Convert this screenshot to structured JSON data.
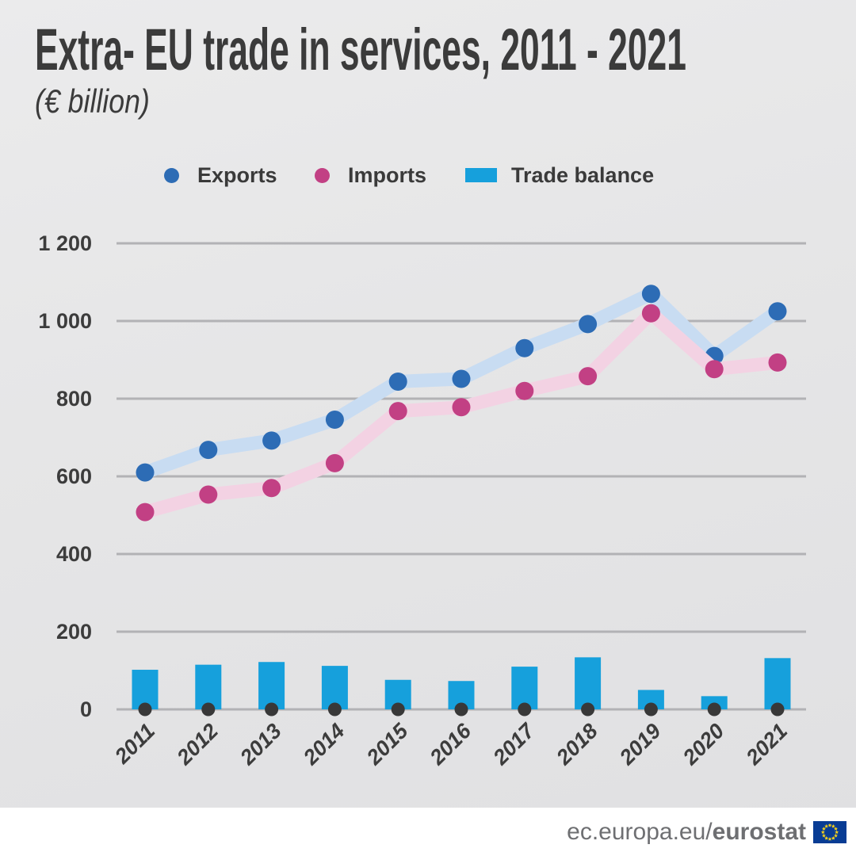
{
  "title": "Extra- EU trade in services, 2011 - 2021",
  "subtitle": "(€ billion)",
  "legend": [
    {
      "label": "Exports",
      "marker": "circle",
      "color": "#2d6cb5"
    },
    {
      "label": "Imports",
      "marker": "circle",
      "color": "#c24084"
    },
    {
      "label": "Trade balance",
      "marker": "rect",
      "color": "#16a0dc"
    }
  ],
  "footer": {
    "url_regular": "ec.europa.eu/",
    "url_bold": "eurostat",
    "flag_icon": "eu-flag-icon",
    "flag_blue": "#083c94",
    "flag_star_color": "#ffd617"
  },
  "colors": {
    "background": "#e6e6e7",
    "gridline": "#b2b2b5",
    "axis_dot": "#383838",
    "tick_text": "#3c3c3c",
    "exports_band": "#c8dcf2",
    "imports_band": "#f3d2e3"
  },
  "chart_data": {
    "type": "line+bar",
    "title": "Extra- EU trade in services, 2011 - 2021",
    "unit": "€ billion",
    "categories": [
      "2011",
      "2012",
      "2013",
      "2014",
      "2015",
      "2016",
      "2017",
      "2018",
      "2019",
      "2020",
      "2021"
    ],
    "series": [
      {
        "name": "Exports",
        "type": "line",
        "color": "#2d6cb5",
        "band_color": "#c8dcf2",
        "values": [
          610,
          668,
          692,
          746,
          844,
          851,
          930,
          992,
          1070,
          910,
          1025
        ]
      },
      {
        "name": "Imports",
        "type": "line",
        "color": "#c24084",
        "band_color": "#f3d2e3",
        "values": [
          508,
          553,
          570,
          634,
          768,
          778,
          820,
          858,
          1020,
          876,
          893
        ]
      },
      {
        "name": "Trade balance",
        "type": "bar",
        "color": "#16a0dc",
        "values": [
          102,
          115,
          122,
          112,
          76,
          73,
          110,
          134,
          50,
          34,
          132
        ]
      }
    ],
    "yticks": [
      0,
      200,
      400,
      600,
      800,
      1000,
      1200
    ],
    "ytick_labels": [
      "0",
      "200",
      "400",
      "600",
      "800",
      "1 000",
      "1 200"
    ],
    "ylim": [
      0,
      1260
    ],
    "grid": true,
    "legend_position": "top"
  }
}
